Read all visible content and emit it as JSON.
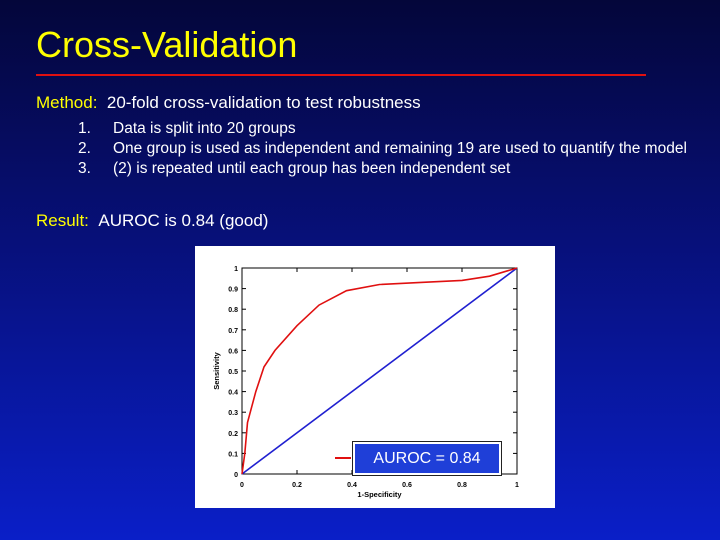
{
  "slide": {
    "title": "Cross-Validation",
    "method_label": "Method:",
    "method_text": "20-fold cross-validation to test robustness",
    "items": [
      {
        "num": "1.",
        "text": "Data is split into 20 groups"
      },
      {
        "num": "2.",
        "text": "One group is used as independent and remaining 19 are used to quantify the model"
      },
      {
        "num": "3.",
        "text": "(2) is repeated until each group has been independent set"
      }
    ],
    "result_label": "Result:",
    "result_text": "AUROC is 0.84 (good)"
  },
  "chart_data": {
    "type": "line",
    "xlabel": "1-Specificity",
    "ylabel": "Sensitivity",
    "xlim": [
      0,
      1
    ],
    "ylim": [
      0,
      1
    ],
    "x_ticks": [
      "0",
      "0.2",
      "0.4",
      "0.6",
      "0.8",
      "1"
    ],
    "y_ticks": [
      "0",
      "0.1",
      "0.2",
      "0.3",
      "0.4",
      "0.5",
      "0.6",
      "0.7",
      "0.8",
      "0.9",
      "1"
    ],
    "series": [
      {
        "name": "AUROC = 0.84",
        "color": "#e01010",
        "x": [
          0,
          0.01,
          0.02,
          0.05,
          0.08,
          0.12,
          0.2,
          0.28,
          0.38,
          0.5,
          0.65,
          0.8,
          0.9,
          1
        ],
        "y": [
          0,
          0.1,
          0.25,
          0.4,
          0.52,
          0.6,
          0.72,
          0.82,
          0.89,
          0.92,
          0.93,
          0.94,
          0.96,
          1
        ]
      },
      {
        "name": "",
        "color": "#2020d0",
        "x": [
          0,
          1
        ],
        "y": [
          0,
          1
        ]
      }
    ],
    "legend": {
      "text": "AUROC = 0.84",
      "placement": "bottom-right"
    }
  }
}
